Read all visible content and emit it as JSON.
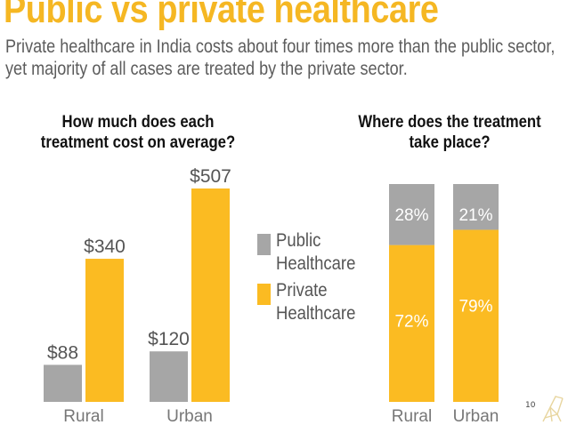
{
  "title": "Public vs private healthcare",
  "subtitle": [
    "Private healthcare in India costs about four times more than the public sector,",
    "yet majority of all cases are treated by the private sector."
  ],
  "legend": {
    "public": [
      "Public",
      "Healthcare"
    ],
    "private": [
      "Private",
      "Healthcare"
    ]
  },
  "colors": {
    "public": "#a6a6a6",
    "private": "#fbbb22",
    "axis_text": "#777777"
  },
  "slide_number": "10",
  "chart_data": [
    {
      "type": "bar",
      "title": [
        "How much does each",
        "treatment cost on average?"
      ],
      "categories": [
        "Rural",
        "Urban"
      ],
      "series": [
        {
          "name": "Public Healthcare",
          "values": [
            88,
            120
          ],
          "labels": [
            "$88",
            "$120"
          ]
        },
        {
          "name": "Private Healthcare",
          "values": [
            340,
            507
          ],
          "labels": [
            "$340",
            "$507"
          ]
        }
      ],
      "ylim": [
        0,
        507
      ],
      "grid": false,
      "legend_position": "right"
    },
    {
      "type": "bar",
      "stacked": true,
      "title": [
        "Where does the treatment",
        "take place?"
      ],
      "categories": [
        "Rural",
        "Urban"
      ],
      "series": [
        {
          "name": "Private Healthcare",
          "values": [
            72,
            79
          ],
          "labels": [
            "72%",
            "79%"
          ]
        },
        {
          "name": "Public Healthcare",
          "values": [
            28,
            21
          ],
          "labels": [
            "28%",
            "21%"
          ]
        }
      ],
      "ylim": [
        0,
        100
      ],
      "grid": false
    }
  ]
}
